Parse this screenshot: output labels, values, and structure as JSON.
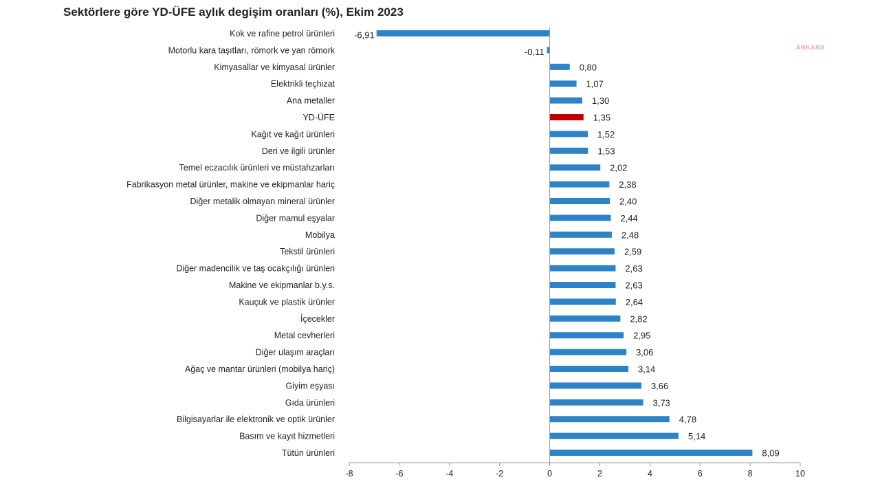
{
  "watermark": "ANKARA",
  "colors": {
    "bar": "#2e83c6",
    "highlight": "#c00000",
    "axis": "#999999",
    "text": "#222222"
  },
  "chart_data": {
    "type": "bar",
    "orientation": "horizontal",
    "title": "Sektörlere göre YD-ÜFE aylık degişim oranları (%), Ekim 2023",
    "categories": [
      "Kok ve rafine petrol ürünleri",
      "Motorlu kara taşıtları, römork ve yan römork",
      "Kimyasallar ve kimyasal ürünler",
      "Elektrikli teçhizat",
      "Ana metaller",
      "YD-ÜFE",
      "Kağıt ve kağıt ürünleri",
      "Deri ve ilgili ürünler",
      "Temel eczacılık ürünleri ve müstahzarları",
      "Fabrikasyon metal ürünler, makine ve ekipmanlar hariç",
      "Diğer metalik olmayan mineral ürünler",
      "Diğer mamul eşyalar",
      "Mobilya",
      "Tekstil ürünleri",
      "Diğer madencilik ve taş ocakçılığı ürünleri",
      "Makine ve ekipmanlar b.y.s.",
      "Kauçuk ve plastik ürünler",
      "İçecekler",
      "Metal cevherleri",
      "Diğer ulaşım araçları",
      "Ağaç ve mantar ürünleri (mobilya hariç)",
      "Giyim eşyası",
      "Gıda ürünleri",
      "Bilgisayarlar ile elektronik ve optik ürünler",
      "Basım ve kayıt hizmetleri",
      "Tütün ürünleri"
    ],
    "values": [
      -6.91,
      -0.11,
      0.8,
      1.07,
      1.3,
      1.35,
      1.52,
      1.53,
      2.02,
      2.38,
      2.4,
      2.44,
      2.48,
      2.59,
      2.63,
      2.63,
      2.64,
      2.82,
      2.95,
      3.06,
      3.14,
      3.66,
      3.73,
      4.78,
      5.14,
      8.09
    ],
    "value_labels": [
      "-6,91",
      "-0,11",
      "0,80",
      "1,07",
      "1,30",
      "1,35",
      "1,52",
      "1,53",
      "2,02",
      "2,38",
      "2,40",
      "2,44",
      "2,48",
      "2,59",
      "2,63",
      "2,63",
      "2,64",
      "2,82",
      "2,95",
      "3,06",
      "3,14",
      "3,66",
      "3,73",
      "4,78",
      "5,14",
      "8,09"
    ],
    "highlight_category": "YD-ÜFE",
    "xlim": [
      -8,
      10
    ],
    "xticks": [
      -8,
      -6,
      -4,
      -2,
      0,
      2,
      4,
      6,
      8,
      10
    ],
    "xlabel": "",
    "ylabel": "",
    "grid": false
  }
}
